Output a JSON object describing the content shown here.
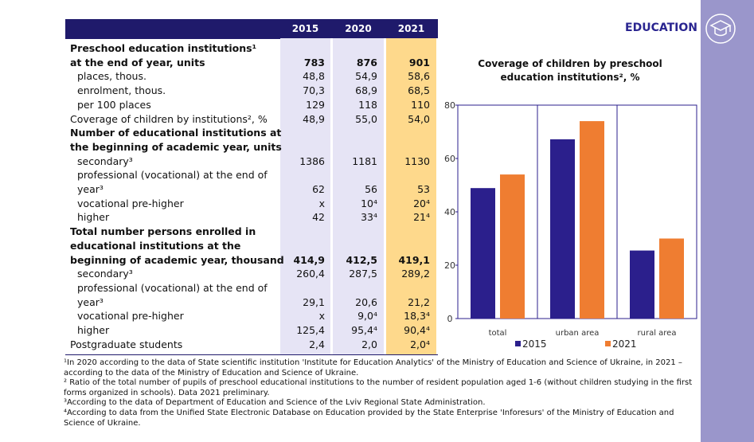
{
  "header": {
    "title": "EDUCATION"
  },
  "table": {
    "columns": [
      "2015",
      "2020",
      "2021"
    ],
    "rows": [
      {
        "label": "Preschool education institutions¹",
        "bold": true
      },
      {
        "label": "at the end of year, units",
        "bold": true,
        "values": [
          "783",
          "876",
          "901"
        ]
      },
      {
        "label": "places, thous.",
        "indent": true,
        "values": [
          "48,8",
          "54,9",
          "58,6"
        ]
      },
      {
        "label": "enrolment, thous.",
        "indent": true,
        "values": [
          "70,3",
          "68,9",
          "68,5"
        ]
      },
      {
        "label": "per 100 places",
        "indent": true,
        "values": [
          "129",
          "118",
          "110"
        ]
      },
      {
        "label": "Coverage of children by institutions², %",
        "values": [
          "48,9",
          "55,0",
          "54,0"
        ]
      },
      {
        "label": "Number of educational institutions at",
        "bold": true
      },
      {
        "label": "the beginning of academic year, units",
        "bold": true
      },
      {
        "label": "secondary³",
        "indent": true,
        "values": [
          "1386",
          "1181",
          "1130"
        ]
      },
      {
        "label": "professional (vocational) at the end of",
        "indent": true
      },
      {
        "label": "year³",
        "indent": true,
        "values": [
          "62",
          "56",
          "53"
        ]
      },
      {
        "label": "vocational pre-higher",
        "indent": true,
        "values": [
          "x",
          "10⁴",
          "20⁴"
        ]
      },
      {
        "label": "higher",
        "indent": true,
        "values": [
          "42",
          "33⁴",
          "21⁴"
        ]
      },
      {
        "label": "Total number persons enrolled in",
        "bold": true
      },
      {
        "label": "educational institutions at the",
        "bold": true
      },
      {
        "label": "beginning of academic year, thousand",
        "bold": true,
        "values": [
          "414,9",
          "412,5",
          "419,1"
        ]
      },
      {
        "label": "secondary³",
        "indent": true,
        "values": [
          "260,4",
          "287,5",
          "289,2"
        ]
      },
      {
        "label": "professional (vocational) at the end of",
        "indent": true
      },
      {
        "label": "year³",
        "indent": true,
        "values": [
          "29,1",
          "20,6",
          "21,2"
        ]
      },
      {
        "label": "vocational pre-higher",
        "indent": true,
        "values": [
          "x",
          "9,0⁴",
          "18,3⁴"
        ]
      },
      {
        "label": "higher",
        "indent": true,
        "values": [
          "125,4",
          "95,4⁴",
          "90,4⁴"
        ]
      },
      {
        "label": "Postgraduate students",
        "values": [
          "2,4",
          "2,0",
          "2,0⁴"
        ]
      }
    ]
  },
  "chart_data": {
    "type": "bar",
    "title": "Coverage of children by preschool education institutions², %",
    "categories": [
      "total",
      "urban area",
      "rural area"
    ],
    "series": [
      {
        "name": "2015",
        "color": "#2b1f8c",
        "values": [
          48.9,
          67.2,
          25.5
        ]
      },
      {
        "name": "2021",
        "color": "#ef7d31",
        "values": [
          54.0,
          74.0,
          30.0
        ]
      }
    ],
    "ylim": [
      0,
      80
    ],
    "yticks": [
      0,
      20,
      40,
      60,
      80
    ]
  },
  "footnotes": [
    "¹In 2020 according  to the data of State scientific institution 'Institute for Education Analytics' of the Ministry of Education and Science of Ukraine, in 2021 – according to the data of the Ministry of Education and Science of Ukraine.",
    "² Ratio of the total number of pupils of preschool educational institutions to the number of resident population aged 1-6 (without children studying in the first forms organized in schools). Data 2021 preliminary.",
    "³According to the data of Department of Education and Science of the Lviv Regional State Administration.",
    "⁴According to data from the Unified State Electronic Database on Education provided by the State Enterprise 'Inforesurs' of the Ministry of Education and Science of Ukraine."
  ]
}
